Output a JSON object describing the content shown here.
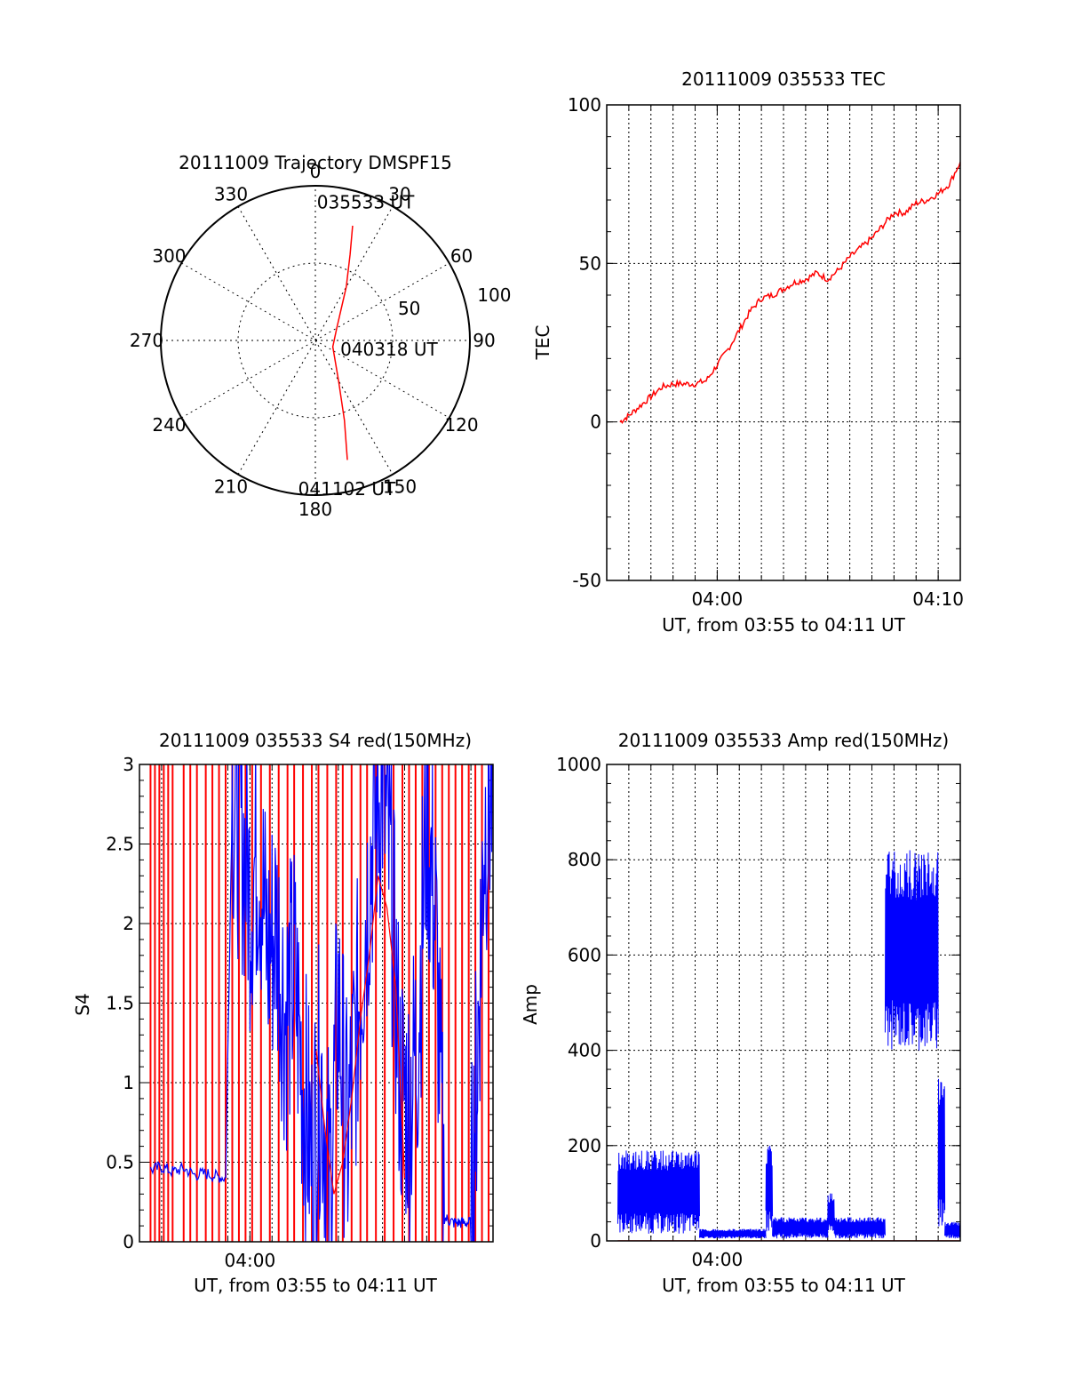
{
  "colors": {
    "red": "#ff0000",
    "blue": "#0000ff",
    "axis": "#000000",
    "grid": "#000000"
  },
  "chart_data": [
    {
      "id": "trajectory",
      "type": "polar",
      "title": "20111009 Trajectory DMSPF15",
      "grid": true,
      "radial_range": [
        0,
        100
      ],
      "radial_ticks": [
        50,
        100
      ],
      "angle_labels": [
        "0",
        "30",
        "60",
        "90",
        "120",
        "150",
        "180",
        "210",
        "240",
        "270",
        "300",
        "330"
      ],
      "series": [
        {
          "color": "red",
          "points": [
            {
              "az": 18,
              "zen": 78
            },
            {
              "az": 22,
              "zen": 60
            },
            {
              "az": 30,
              "zen": 40
            },
            {
              "az": 60,
              "zen": 16
            },
            {
              "az": 110,
              "zen": 12
            },
            {
              "az": 150,
              "zen": 30
            },
            {
              "az": 160,
              "zen": 55
            },
            {
              "az": 165,
              "zen": 80
            }
          ]
        }
      ],
      "annotations": [
        {
          "text": "035533 UT",
          "az": 20,
          "zen": 95
        },
        {
          "text": "040318 UT",
          "az": 97,
          "zen": 48
        },
        {
          "text": "041102 UT",
          "az": 168,
          "zen": 98
        }
      ]
    },
    {
      "id": "tec",
      "type": "line",
      "title": "20111009 035533 TEC",
      "xlabel": "UT, from 03:55 to 04:11 UT",
      "ylabel": "TEC",
      "xlim": [
        0,
        16
      ],
      "ylim": [
        -50,
        100
      ],
      "xticks": [
        {
          "v": 5,
          "label": "04:00"
        },
        {
          "v": 15,
          "label": "04:10"
        }
      ],
      "yticks": [
        -50,
        0,
        50,
        100
      ],
      "grid": true,
      "series": [
        {
          "color": "red",
          "points": [
            [
              0.6,
              0
            ],
            [
              1.0,
              2
            ],
            [
              1.5,
              5
            ],
            [
              2.0,
              8
            ],
            [
              2.5,
              11
            ],
            [
              3.0,
              12
            ],
            [
              3.5,
              12
            ],
            [
              4.0,
              12
            ],
            [
              4.5,
              13
            ],
            [
              5.0,
              18
            ],
            [
              5.5,
              23
            ],
            [
              6.0,
              29
            ],
            [
              6.5,
              35
            ],
            [
              7.0,
              39
            ],
            [
              7.5,
              40
            ],
            [
              8.0,
              42
            ],
            [
              8.5,
              44
            ],
            [
              9.0,
              45
            ],
            [
              9.5,
              47
            ],
            [
              10.0,
              45
            ],
            [
              10.5,
              48
            ],
            [
              11.0,
              52
            ],
            [
              11.5,
              55
            ],
            [
              12.0,
              58
            ],
            [
              12.5,
              62
            ],
            [
              13.0,
              66
            ],
            [
              13.5,
              66
            ],
            [
              14.0,
              69
            ],
            [
              14.5,
              70
            ],
            [
              15.0,
              72
            ],
            [
              15.5,
              75
            ],
            [
              16.0,
              82
            ]
          ]
        }
      ]
    },
    {
      "id": "s4",
      "type": "line",
      "title": "20111009 035533 S4 red(150MHz)",
      "xlabel": "UT, from 03:55 to 04:11 UT",
      "ylabel": "S4",
      "xlim": [
        0,
        16
      ],
      "ylim": [
        0,
        3
      ],
      "xticks": [
        {
          "v": 5,
          "label": "04:00"
        }
      ],
      "yticks": [
        {
          "v": 0,
          "label": "0"
        },
        {
          "v": 0.5,
          "label": "0.5"
        },
        {
          "v": 1,
          "label": "1"
        },
        {
          "v": 1.5,
          "label": "1.5"
        },
        {
          "v": 2,
          "label": "2"
        },
        {
          "v": 2.5,
          "label": "2.5"
        },
        {
          "v": 3,
          "label": "3"
        }
      ],
      "grid": true,
      "series": [
        {
          "color": "red",
          "spikes": [
            0.5,
            0.7,
            0.9,
            1.1,
            1.3,
            1.5,
            2.0,
            2.3,
            2.6,
            3.0,
            3.3,
            3.6,
            3.9,
            4.2,
            4.5,
            4.8,
            5.1,
            5.5,
            5.9,
            6.3,
            6.7,
            7.0,
            7.4,
            7.8,
            8.1,
            8.5,
            8.9,
            9.2,
            9.6,
            10.0,
            10.3,
            10.7,
            11.1,
            11.5,
            11.9,
            12.2,
            12.5,
            12.8,
            13.1,
            13.4,
            13.7,
            14.0,
            14.3,
            14.6,
            14.9,
            15.2,
            15.5,
            15.8
          ],
          "points": [
            [
              8.0,
              1.2
            ],
            [
              8.4,
              0.7
            ],
            [
              8.8,
              0.3
            ],
            [
              9.2,
              0.5
            ],
            [
              9.6,
              0.9
            ],
            [
              10.0,
              1.4
            ],
            [
              10.4,
              1.8
            ],
            [
              10.8,
              2.3
            ],
            [
              11.2,
              2.1
            ],
            [
              11.6,
              1.6
            ],
            [
              12.0,
              0.4
            ]
          ]
        },
        {
          "color": "blue",
          "points": [
            [
              0.5,
              0.45
            ],
            [
              1.0,
              0.47
            ],
            [
              1.5,
              0.44
            ],
            [
              2.0,
              0.46
            ],
            [
              2.5,
              0.42
            ],
            [
              3.0,
              0.43
            ],
            [
              3.5,
              0.41
            ],
            [
              3.9,
              0.4
            ],
            [
              4.2,
              2.8
            ],
            [
              4.6,
              2.6
            ],
            [
              5.0,
              2.2
            ],
            [
              5.4,
              2.5
            ],
            [
              5.8,
              1.8
            ],
            [
              6.2,
              2.0
            ],
            [
              6.6,
              1.4
            ],
            [
              7.0,
              1.7
            ],
            [
              7.4,
              1.0
            ],
            [
              7.8,
              0.5
            ],
            [
              8.2,
              1.1
            ],
            [
              8.6,
              0.3
            ],
            [
              9.0,
              1.5
            ],
            [
              9.4,
              0.6
            ],
            [
              9.8,
              1.3
            ],
            [
              10.2,
              2.0
            ],
            [
              10.6,
              2.6
            ],
            [
              11.0,
              2.9
            ],
            [
              11.4,
              2.2
            ],
            [
              11.8,
              1.0
            ],
            [
              12.2,
              0.85
            ],
            [
              12.6,
              1.3
            ],
            [
              13.0,
              2.7
            ],
            [
              13.4,
              2.0
            ],
            [
              13.8,
              0.15
            ],
            [
              14.2,
              0.12
            ],
            [
              14.6,
              0.12
            ],
            [
              15.0,
              0.12
            ],
            [
              15.3,
              1.2
            ],
            [
              15.6,
              2.6
            ],
            [
              16.0,
              2.9
            ]
          ]
        }
      ]
    },
    {
      "id": "amp",
      "type": "line",
      "title": "20111009 035533 Amp red(150MHz)",
      "xlabel": "UT, from 03:55 to 04:11 UT",
      "ylabel": "Amp",
      "xlim": [
        0,
        16
      ],
      "ylim": [
        0,
        1000
      ],
      "xticks": [
        {
          "v": 5,
          "label": "04:00"
        }
      ],
      "yticks": [
        0,
        200,
        400,
        600,
        800,
        1000
      ],
      "grid": true,
      "series": [
        {
          "color": "blue",
          "bands": [
            {
              "x0": 0.5,
              "x1": 4.2,
              "lo": 15,
              "hi": 190
            },
            {
              "x0": 4.2,
              "x1": 7.2,
              "lo": 5,
              "hi": 25
            },
            {
              "x0": 7.2,
              "x1": 7.5,
              "lo": 20,
              "hi": 200
            },
            {
              "x0": 7.5,
              "x1": 10.0,
              "lo": 5,
              "hi": 50
            },
            {
              "x0": 10.0,
              "x1": 10.3,
              "lo": 20,
              "hi": 100
            },
            {
              "x0": 10.3,
              "x1": 12.6,
              "lo": 5,
              "hi": 50
            },
            {
              "x0": 12.6,
              "x1": 15.0,
              "lo": 400,
              "hi": 820
            },
            {
              "x0": 15.0,
              "x1": 15.3,
              "lo": 30,
              "hi": 350
            },
            {
              "x0": 15.3,
              "x1": 16.0,
              "lo": 5,
              "hi": 40
            }
          ]
        },
        {
          "color": "red",
          "points": [
            [
              0.5,
              0
            ],
            [
              16.0,
              0
            ]
          ]
        }
      ]
    }
  ]
}
